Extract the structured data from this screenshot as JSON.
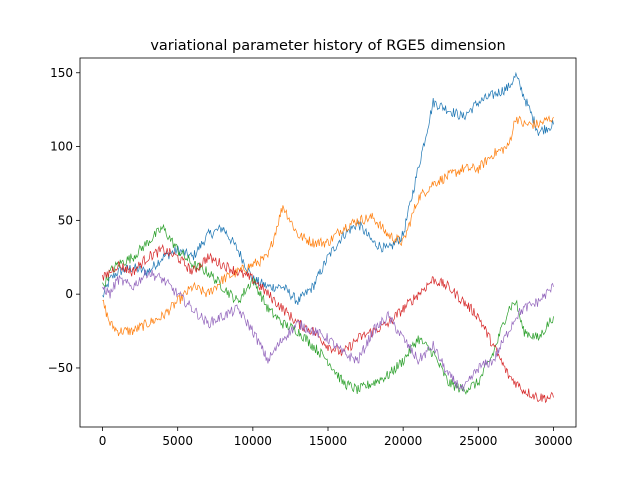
{
  "chart_data": {
    "type": "line",
    "title": "variational parameter history of RGE5 dimension",
    "xlabel": "",
    "ylabel": "",
    "xlim": [
      -1500,
      31500
    ],
    "ylim": [
      -90,
      160
    ],
    "x_ticks": [
      0,
      5000,
      10000,
      15000,
      20000,
      25000,
      30000
    ],
    "x_tick_labels": [
      "0",
      "5000",
      "10000",
      "15000",
      "20000",
      "25000",
      "30000"
    ],
    "y_ticks": [
      -50,
      0,
      50,
      100,
      150
    ],
    "y_tick_labels": [
      "−50",
      "0",
      "50",
      "100",
      "150"
    ],
    "grid": false,
    "legend": "none",
    "x": [
      0,
      500,
      1000,
      2000,
      3000,
      4000,
      5000,
      6000,
      7000,
      8000,
      9000,
      10000,
      11000,
      12000,
      13000,
      14000,
      15000,
      16000,
      17000,
      18000,
      19000,
      20000,
      21000,
      22000,
      23000,
      24000,
      25000,
      26000,
      27000,
      27500,
      28000,
      29000,
      30000
    ],
    "series": [
      {
        "color": "#1f77b4",
        "values": [
          -2,
          10,
          15,
          18,
          15,
          25,
          30,
          25,
          40,
          45,
          30,
          10,
          5,
          5,
          -5,
          5,
          25,
          40,
          48,
          35,
          30,
          40,
          85,
          130,
          125,
          120,
          130,
          135,
          140,
          148,
          135,
          110,
          115
        ]
      },
      {
        "color": "#ff7f0e",
        "values": [
          -5,
          -20,
          -25,
          -25,
          -20,
          -15,
          -5,
          5,
          0,
          10,
          15,
          20,
          25,
          60,
          40,
          35,
          35,
          45,
          50,
          52,
          40,
          35,
          65,
          75,
          80,
          85,
          85,
          95,
          100,
          120,
          115,
          115,
          120
        ]
      },
      {
        "color": "#2ca02c",
        "values": [
          5,
          15,
          20,
          25,
          35,
          45,
          30,
          20,
          15,
          5,
          -5,
          10,
          -10,
          -20,
          -25,
          -35,
          -45,
          -60,
          -65,
          -60,
          -55,
          -45,
          -30,
          -40,
          -60,
          -65,
          -60,
          -40,
          -10,
          -5,
          -25,
          -30,
          -15
        ]
      },
      {
        "color": "#d62728",
        "values": [
          10,
          15,
          20,
          15,
          25,
          30,
          25,
          15,
          25,
          20,
          15,
          10,
          0,
          -10,
          -20,
          -25,
          -35,
          -40,
          -30,
          -25,
          -20,
          -10,
          0,
          10,
          5,
          -5,
          -15,
          -35,
          -55,
          -60,
          -65,
          -70,
          -70
        ]
      },
      {
        "color": "#9467bd",
        "values": [
          5,
          0,
          10,
          5,
          15,
          10,
          0,
          -10,
          -20,
          -15,
          -10,
          -25,
          -45,
          -30,
          -20,
          -25,
          -30,
          -40,
          -45,
          -25,
          -15,
          -30,
          -45,
          -35,
          -55,
          -65,
          -50,
          -45,
          -25,
          -15,
          -10,
          -5,
          5
        ]
      }
    ]
  }
}
